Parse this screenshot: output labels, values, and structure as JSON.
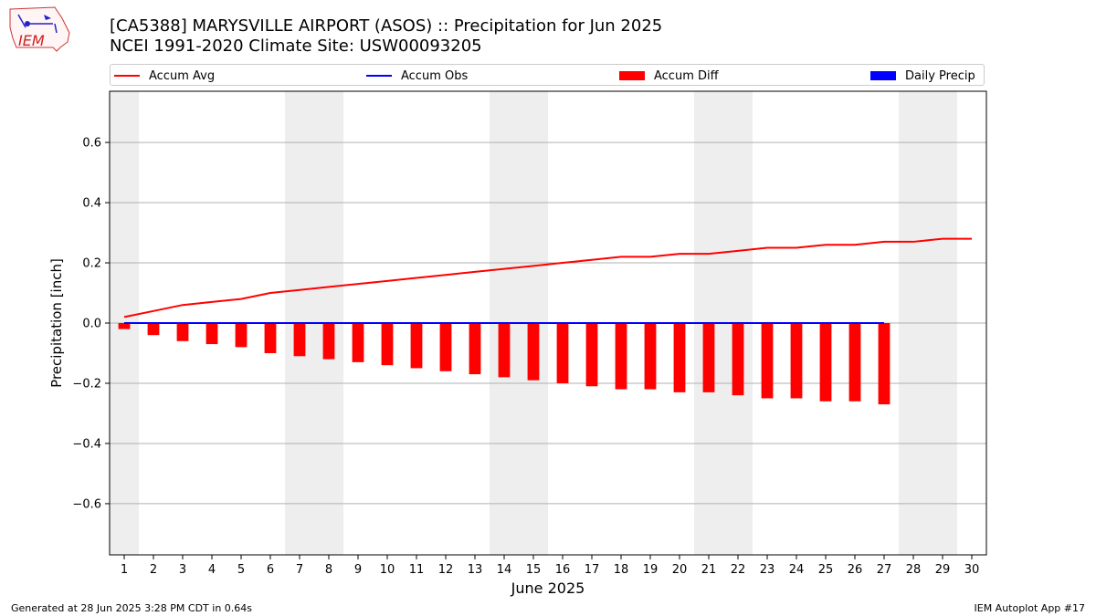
{
  "header": {
    "title_line1": "[CA5388] MARYSVILLE AIRPORT (ASOS) :: Precipitation for Jun 2025",
    "title_line2": "NCEI 1991-2020 Climate Site: USW00093205"
  },
  "logo": {
    "text": "IEM"
  },
  "footer": {
    "generated": "Generated at 28 Jun 2025 3:28 PM CDT in 0.64s",
    "app": "IEM Autoplot App #17"
  },
  "colors": {
    "accum_avg": "#ff0000",
    "accum_obs": "#0000ff",
    "accum_diff": "#ff0000",
    "daily_precip": "#0000ff",
    "weekend_shade": "#eeeeee",
    "grid": "#b0b0b0"
  },
  "chart_data": {
    "type": "bar",
    "xlabel": "June 2025",
    "ylabel": "Precipitation [inch]",
    "ylim": [
      -0.77,
      0.77
    ],
    "xlim": [
      0.5,
      30.5
    ],
    "yticks": [
      -0.6,
      -0.4,
      -0.2,
      0.0,
      0.2,
      0.4,
      0.6
    ],
    "ytick_labels": [
      "−0.6",
      "−0.4",
      "−0.2",
      "0.0",
      "0.2",
      "0.4",
      "0.6"
    ],
    "days": [
      1,
      2,
      3,
      4,
      5,
      6,
      7,
      8,
      9,
      10,
      11,
      12,
      13,
      14,
      15,
      16,
      17,
      18,
      19,
      20,
      21,
      22,
      23,
      24,
      25,
      26,
      27,
      28,
      29,
      30
    ],
    "weekend_days": [
      1,
      7,
      8,
      14,
      15,
      21,
      22,
      28,
      29
    ],
    "grid": "horizontal",
    "legend": {
      "placement": "top",
      "entries": [
        {
          "label": "Accum Avg",
          "kind": "line",
          "color": "#ff0000"
        },
        {
          "label": "Accum Obs",
          "kind": "line",
          "color": "#0000ff"
        },
        {
          "label": "Accum Diff",
          "kind": "bar",
          "color": "#ff0000"
        },
        {
          "label": "Daily Precip",
          "kind": "bar",
          "color": "#0000ff"
        }
      ]
    },
    "series": [
      {
        "name": "Accum Avg",
        "type": "line",
        "x": [
          1,
          2,
          3,
          4,
          5,
          6,
          7,
          8,
          9,
          10,
          11,
          12,
          13,
          14,
          15,
          16,
          17,
          18,
          19,
          20,
          21,
          22,
          23,
          24,
          25,
          26,
          27,
          28,
          29,
          30
        ],
        "values": [
          0.02,
          0.04,
          0.06,
          0.07,
          0.08,
          0.1,
          0.11,
          0.12,
          0.13,
          0.14,
          0.15,
          0.16,
          0.17,
          0.18,
          0.19,
          0.2,
          0.21,
          0.22,
          0.22,
          0.23,
          0.23,
          0.24,
          0.25,
          0.25,
          0.26,
          0.26,
          0.27,
          0.27,
          0.28,
          0.28
        ]
      },
      {
        "name": "Accum Obs",
        "type": "line",
        "x": [
          1,
          2,
          3,
          4,
          5,
          6,
          7,
          8,
          9,
          10,
          11,
          12,
          13,
          14,
          15,
          16,
          17,
          18,
          19,
          20,
          21,
          22,
          23,
          24,
          25,
          26,
          27
        ],
        "values": [
          0,
          0,
          0,
          0,
          0,
          0,
          0,
          0,
          0,
          0,
          0,
          0,
          0,
          0,
          0,
          0,
          0,
          0,
          0,
          0,
          0,
          0,
          0,
          0,
          0,
          0,
          0
        ]
      },
      {
        "name": "Accum Diff",
        "type": "bar",
        "x": [
          1,
          2,
          3,
          4,
          5,
          6,
          7,
          8,
          9,
          10,
          11,
          12,
          13,
          14,
          15,
          16,
          17,
          18,
          19,
          20,
          21,
          22,
          23,
          24,
          25,
          26,
          27
        ],
        "values": [
          -0.02,
          -0.04,
          -0.06,
          -0.07,
          -0.08,
          -0.1,
          -0.11,
          -0.12,
          -0.13,
          -0.14,
          -0.15,
          -0.16,
          -0.17,
          -0.18,
          -0.19,
          -0.2,
          -0.21,
          -0.22,
          -0.22,
          -0.23,
          -0.23,
          -0.24,
          -0.25,
          -0.25,
          -0.26,
          -0.26,
          -0.27
        ]
      },
      {
        "name": "Daily Precip",
        "type": "bar",
        "x": [
          1,
          2,
          3,
          4,
          5,
          6,
          7,
          8,
          9,
          10,
          11,
          12,
          13,
          14,
          15,
          16,
          17,
          18,
          19,
          20,
          21,
          22,
          23,
          24,
          25,
          26,
          27
        ],
        "values": [
          0,
          0,
          0,
          0,
          0,
          0,
          0,
          0,
          0,
          0,
          0,
          0,
          0,
          0,
          0,
          0,
          0,
          0,
          0,
          0,
          0,
          0,
          0,
          0,
          0,
          0,
          0
        ]
      }
    ]
  }
}
